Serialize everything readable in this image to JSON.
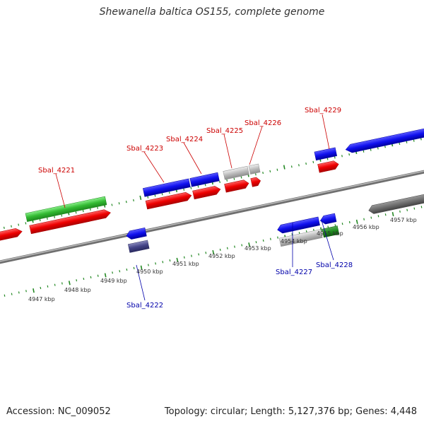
{
  "title": "Shewanella baltica OS155, complete genome",
  "footer": {
    "accession": "Accession: NC_009052",
    "summary": "Topology: circular; Length: 5,127,376 bp; Genes: 4,448"
  },
  "ruler_labels": [
    "4947 kbp",
    "4948 kbp",
    "4949 kbp",
    "4950 kbp",
    "4951 kbp",
    "4952 kbp",
    "4953 kbp",
    "4954 kbp",
    "4955 kbp",
    "4956 kbp",
    "4957 kbp"
  ],
  "gene_labels": {
    "forward": [
      "Sbal_4221",
      "Sbal_4223",
      "Sbal_4224",
      "Sbal_4225",
      "Sbal_4226",
      "Sbal_4229"
    ],
    "reverse": [
      "Sbal_4222",
      "Sbal_4227",
      "Sbal_4228"
    ]
  },
  "colors": {
    "forward_label": "#cc0000",
    "reverse_label": "#0000aa",
    "forward_cds": "#ee0000",
    "reverse_cds": "#0000dd",
    "forward_gene": "#33bb33",
    "reverse_gene_grey": "#bbbbbb",
    "ruler": "#228822",
    "backbone": "#888888"
  }
}
